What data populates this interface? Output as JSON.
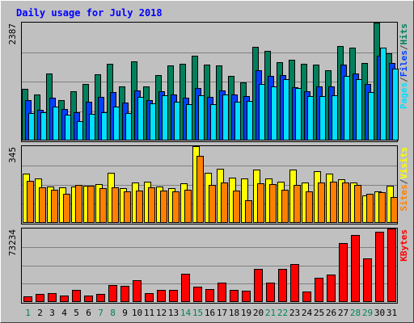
{
  "chart_data": {
    "type": "bar",
    "title": "Daily usage for July 2018",
    "categories": [
      "1",
      "2",
      "3",
      "4",
      "5",
      "6",
      "7",
      "8",
      "9",
      "10",
      "11",
      "12",
      "13",
      "14",
      "15",
      "16",
      "17",
      "18",
      "19",
      "20",
      "21",
      "22",
      "23",
      "24",
      "25",
      "26",
      "27",
      "28",
      "29",
      "30",
      "31"
    ],
    "weekend_days": [
      "1",
      "7",
      "8",
      "14",
      "15",
      "21",
      "22",
      "28",
      "29"
    ],
    "panels": [
      {
        "id": "hits",
        "max_label": "2387",
        "ylim": [
          0,
          2387
        ],
        "legend": [
          "Pages",
          "/",
          "Files",
          "/",
          "Hits"
        ],
        "series": [
          {
            "name": "Hits",
            "color": "#00805c",
            "values": [
              1050,
              940,
              1350,
              810,
              990,
              1140,
              1340,
              1560,
              1100,
              1600,
              1090,
              1320,
              1520,
              1560,
              1720,
              1530,
              1520,
              1310,
              1180,
              1890,
              1810,
              1580,
              1640,
              1560,
              1540,
              1420,
              1920,
              1880,
              1570,
              2387,
              1760
            ]
          },
          {
            "name": "Files",
            "color": "#0040ff",
            "values": [
              810,
              620,
              860,
              630,
              580,
              790,
              880,
              980,
              770,
              1020,
              820,
              1000,
              940,
              870,
              1060,
              890,
              1020,
              930,
              900,
              1430,
              1300,
              1330,
              1080,
              1000,
              1090,
              1100,
              1540,
              1350,
              1140,
              1720,
              1570
            ]
          },
          {
            "name": "Pages",
            "color": "#00e0ff",
            "values": [
              560,
              580,
              680,
              520,
              390,
              540,
              570,
              690,
              560,
              880,
              750,
              920,
              780,
              740,
              920,
              730,
              930,
              790,
              800,
              1140,
              1090,
              1250,
              1060,
              900,
              900,
              920,
              1310,
              1250,
              980,
              1880,
              1450
            ]
          }
        ]
      },
      {
        "id": "visits",
        "max_label": "345",
        "ylim": [
          0,
          345
        ],
        "legend": [
          "Sites",
          "/",
          "Visits"
        ],
        "series": [
          {
            "name": "Visits",
            "color": "#ffff00",
            "values": [
              222,
              200,
              165,
              160,
              165,
              168,
              176,
              225,
              155,
              182,
              185,
              165,
              155,
              178,
              345,
              225,
              245,
              202,
              198,
              238,
              200,
              185,
              238,
              182,
              232,
              222,
              195,
              180,
              125,
              140,
              166
            ]
          },
          {
            "name": "Sites",
            "color": "#ff8000",
            "values": [
              188,
              158,
              148,
              130,
              172,
              168,
              156,
              160,
              140,
              145,
              160,
              145,
              140,
              148,
              300,
              170,
              182,
              145,
              100,
              178,
              175,
              150,
              170,
              140,
              182,
              185,
              182,
              170,
              130,
              138,
              118
            ]
          }
        ]
      },
      {
        "id": "kbytes",
        "max_label": "73234",
        "ylim": [
          0,
          73234
        ],
        "legend": [
          "KBytes"
        ],
        "series": [
          {
            "name": "KBytes",
            "color": "#ff0000",
            "values": [
              5400,
              7800,
              9200,
              6800,
              11900,
              6700,
              8400,
              17300,
              15800,
              21800,
              8800,
              11700,
              11900,
              28300,
              15300,
              12800,
              19500,
              11900,
              10900,
              32900,
              19000,
              32600,
              37800,
              10100,
              23900,
              27600,
              58800,
              67100,
              43800,
              70400,
              73234
            ]
          }
        ]
      }
    ]
  }
}
